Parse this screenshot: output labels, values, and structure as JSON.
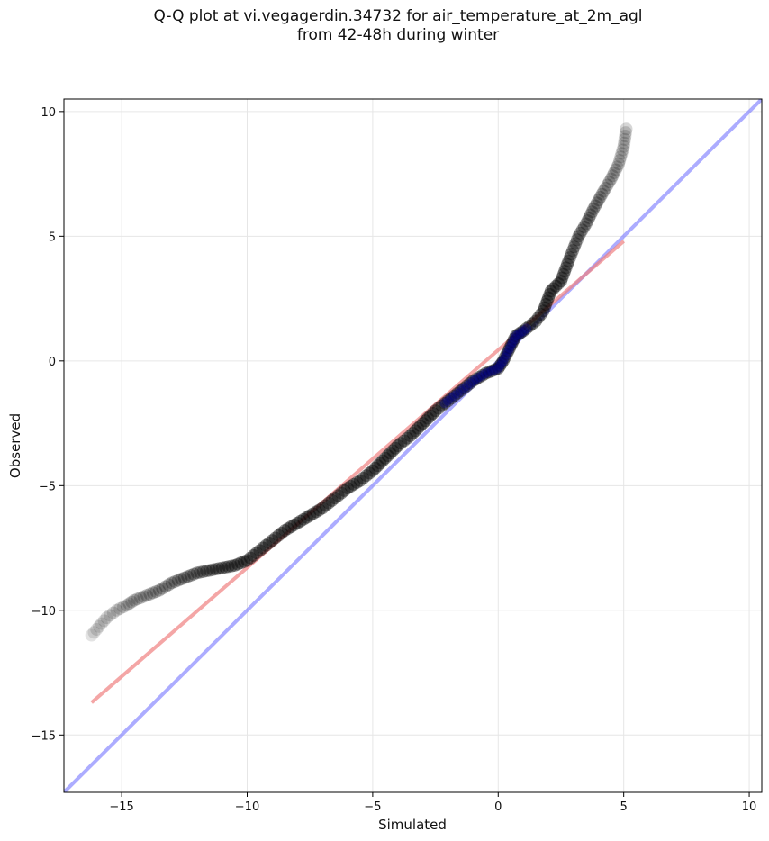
{
  "chart_data": {
    "type": "scatter",
    "title": "Q-Q plot at vi.vegagerdin.34732 for air_temperature_at_2m_agl",
    "subtitle": "from 42-48h during winter",
    "xlabel": "Simulated",
    "ylabel": "Observed",
    "xlim": [
      -17.3,
      10.5
    ],
    "ylim": [
      -17.3,
      10.5
    ],
    "x_ticks": [
      -15,
      -10,
      -5,
      0,
      5,
      10
    ],
    "y_ticks": [
      -15,
      -10,
      -5,
      0,
      5,
      10
    ],
    "x_tick_labels": [
      "−15",
      "−10",
      "−5",
      "0",
      "5",
      "10"
    ],
    "y_tick_labels": [
      "−15",
      "−10",
      "−5",
      "0",
      "5",
      "10"
    ],
    "grid": true,
    "colors": {
      "points": "#000000",
      "points_center": "#00008b",
      "fit_line": "#f08080",
      "identity_line": "#8080ff",
      "grid": "#e6e6e6"
    },
    "curve_points": [
      [
        -16.2,
        -11.0
      ],
      [
        -15.6,
        -10.3
      ],
      [
        -15.2,
        -10.0
      ],
      [
        -14.8,
        -9.8
      ],
      [
        -14.5,
        -9.6
      ],
      [
        -14.0,
        -9.4
      ],
      [
        -13.5,
        -9.2
      ],
      [
        -13.0,
        -8.9
      ],
      [
        -12.5,
        -8.7
      ],
      [
        -12.0,
        -8.5
      ],
      [
        -11.5,
        -8.4
      ],
      [
        -11.0,
        -8.3
      ],
      [
        -10.5,
        -8.2
      ],
      [
        -10.0,
        -8.0
      ],
      [
        -9.5,
        -7.6
      ],
      [
        -9.0,
        -7.2
      ],
      [
        -8.5,
        -6.8
      ],
      [
        -8.0,
        -6.5
      ],
      [
        -7.5,
        -6.2
      ],
      [
        -7.0,
        -5.9
      ],
      [
        -6.5,
        -5.5
      ],
      [
        -6.0,
        -5.1
      ],
      [
        -5.5,
        -4.8
      ],
      [
        -5.0,
        -4.4
      ],
      [
        -4.5,
        -3.9
      ],
      [
        -4.0,
        -3.4
      ],
      [
        -3.5,
        -3.0
      ],
      [
        -3.0,
        -2.5
      ],
      [
        -2.5,
        -2.0
      ],
      [
        -2.0,
        -1.6
      ],
      [
        -1.5,
        -1.2
      ],
      [
        -1.0,
        -0.8
      ],
      [
        -0.5,
        -0.5
      ],
      [
        0.0,
        -0.3
      ],
      [
        0.2,
        0.0
      ],
      [
        0.4,
        0.4
      ],
      [
        0.7,
        1.0
      ],
      [
        1.0,
        1.2
      ],
      [
        1.5,
        1.6
      ],
      [
        1.8,
        2.0
      ],
      [
        2.1,
        2.8
      ],
      [
        2.5,
        3.2
      ],
      [
        2.8,
        4.0
      ],
      [
        3.2,
        5.0
      ],
      [
        3.5,
        5.5
      ],
      [
        3.8,
        6.1
      ],
      [
        4.2,
        6.8
      ],
      [
        4.5,
        7.3
      ],
      [
        4.8,
        7.9
      ],
      [
        5.0,
        8.6
      ],
      [
        5.1,
        9.3
      ]
    ],
    "fit_line": {
      "x": [
        -16.2,
        5.0
      ],
      "y": [
        -13.7,
        4.8
      ]
    },
    "identity_line": {
      "x": [
        -17.3,
        10.5
      ],
      "y": [
        -17.3,
        10.5
      ]
    }
  }
}
